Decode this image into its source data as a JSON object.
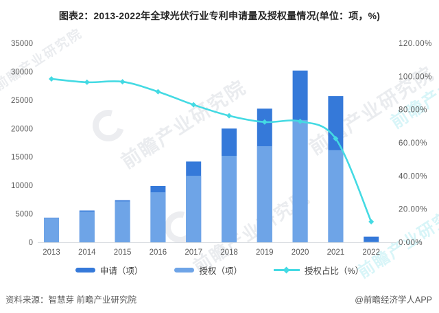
{
  "title": "图表2：2013-2022年全球光伏行业专利申请量及授权量情况(单位：项，%)",
  "footer": {
    "source": "资料来源：智慧芽 前瞻产业研究院",
    "credit": "@前瞻经济学人APP"
  },
  "watermark": {
    "text": "前瞻产业研究院"
  },
  "colors": {
    "application_bar": "#3579D9",
    "authorization_bar": "#6EA4E7",
    "ratio_line": "#44DAE3",
    "axis_line": "#D8DCE0",
    "axis_text": "#595959",
    "title_text": "#262626",
    "footer_text": "#595959"
  },
  "chart_data": {
    "type": "bar",
    "subtype": "combo bar+line, dual axis",
    "title": "图表2：2013-2022年全球光伏行业专利申请量及授权量情况(单位：项，%)",
    "categories": [
      "2013",
      "2014",
      "2015",
      "2016",
      "2017",
      "2018",
      "2019",
      "2020",
      "2021",
      "2022"
    ],
    "series": [
      {
        "name": "申请（项）",
        "type": "bar",
        "axis": "left",
        "values": [
          4300,
          5600,
          7400,
          9900,
          14200,
          20000,
          23500,
          30200,
          25700,
          1000
        ]
      },
      {
        "name": "授权（项）",
        "type": "bar",
        "axis": "left",
        "values": [
          4200,
          5400,
          7200,
          8800,
          11700,
          15200,
          16900,
          21500,
          16200,
          120
        ]
      },
      {
        "name": "授权占比（%）",
        "type": "line",
        "axis": "right",
        "values": [
          98.5,
          96.5,
          96.8,
          90.8,
          82.9,
          76.3,
          72.5,
          72.9,
          62.5,
          12.4
        ]
      }
    ],
    "left_axis": {
      "min": 0,
      "max": 35000,
      "step": 5000,
      "ticks": [
        "0",
        "5000",
        "10000",
        "15000",
        "20000",
        "25000",
        "30000",
        "35000"
      ]
    },
    "right_axis": {
      "min": 0,
      "max": 120,
      "step": 20,
      "ticks": [
        "0.00%",
        "20.00%",
        "40.00%",
        "60.00%",
        "80.00%",
        "100.00%",
        "120.00%"
      ]
    },
    "legend_position": "bottom",
    "grid": false
  }
}
